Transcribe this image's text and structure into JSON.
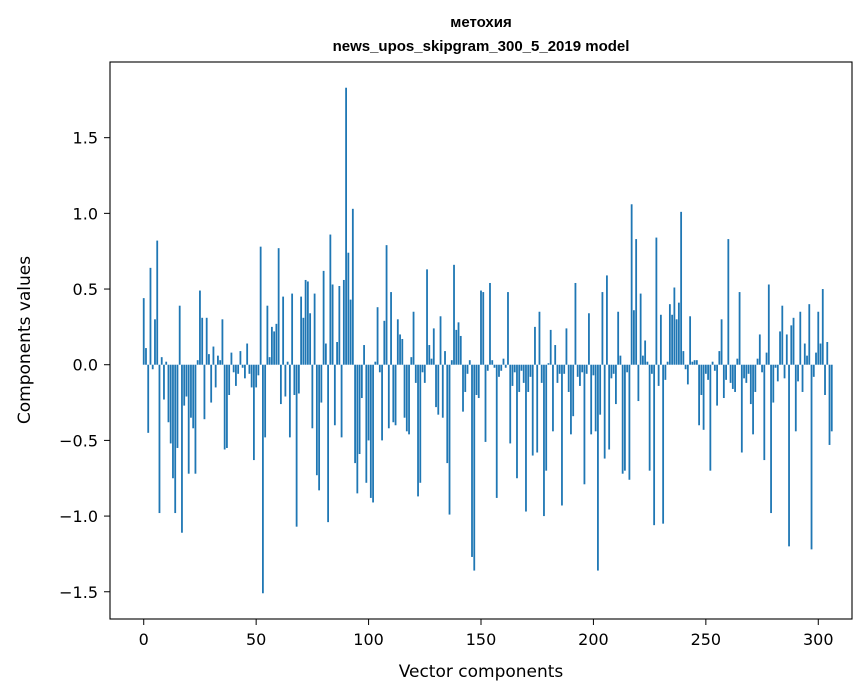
{
  "chart_data": {
    "type": "bar",
    "title_line1": "метохия",
    "title_line2": "news_upos_skipgram_300_5_2019 model",
    "xlabel": "Vector components",
    "ylabel": "Components values",
    "xlim": [
      -15,
      315
    ],
    "ylim": [
      -1.68,
      2.0
    ],
    "x_ticks": [
      0,
      50,
      100,
      150,
      200,
      250,
      300
    ],
    "x_tick_labels": [
      "0",
      "50",
      "100",
      "150",
      "200",
      "250",
      "300"
    ],
    "y_ticks": [
      -1.5,
      -1.0,
      -0.5,
      0.0,
      0.5,
      1.0,
      1.5
    ],
    "y_tick_labels": [
      "−1.5",
      "−1.0",
      "−0.5",
      "0.0",
      "0.5",
      "1.0",
      "1.5"
    ],
    "bar_color": "#1f77b4",
    "grid": false,
    "values": [
      0.44,
      0.11,
      -0.45,
      0.64,
      -0.03,
      0.3,
      0.82,
      -0.98,
      0.05,
      -0.23,
      0.02,
      -0.38,
      -0.52,
      -0.75,
      -0.98,
      -0.55,
      0.39,
      -1.11,
      -0.27,
      -0.21,
      -0.72,
      -0.35,
      -0.42,
      -0.72,
      0.03,
      0.49,
      0.31,
      -0.36,
      0.31,
      0.07,
      -0.25,
      0.12,
      -0.15,
      0.06,
      0.03,
      0.3,
      -0.56,
      -0.55,
      -0.2,
      0.08,
      -0.05,
      -0.14,
      -0.06,
      0.09,
      -0.02,
      -0.09,
      0.14,
      -0.06,
      -0.15,
      -0.63,
      -0.15,
      -0.07,
      0.78,
      -1.51,
      -0.48,
      0.39,
      0.05,
      0.25,
      0.22,
      0.27,
      0.77,
      -0.26,
      0.45,
      -0.21,
      0.02,
      -0.48,
      0.47,
      -0.2,
      -1.07,
      -0.19,
      0.45,
      0.31,
      0.56,
      0.55,
      0.34,
      -0.42,
      0.47,
      -0.73,
      -0.83,
      -0.25,
      0.62,
      0.14,
      -1.04,
      0.86,
      0.53,
      -0.4,
      0.15,
      0.52,
      -0.48,
      0.56,
      1.83,
      0.74,
      0.43,
      1.03,
      -0.65,
      -0.85,
      -0.59,
      -0.22,
      0.13,
      -0.78,
      -0.5,
      -0.88,
      -0.91,
      0.02,
      0.38,
      -0.05,
      -0.5,
      0.29,
      0.79,
      -0.42,
      0.48,
      -0.38,
      -0.4,
      0.3,
      0.2,
      0.17,
      -0.35,
      -0.44,
      -0.46,
      0.05,
      0.35,
      -0.12,
      -0.87,
      -0.78,
      -0.05,
      -0.12,
      0.63,
      0.13,
      0.04,
      0.24,
      -0.28,
      -0.33,
      0.32,
      -0.35,
      0.09,
      -0.65,
      -0.99,
      0.03,
      0.66,
      0.23,
      0.28,
      0.19,
      -0.31,
      -0.18,
      -0.06,
      0.03,
      -1.27,
      -1.36,
      -0.2,
      -0.22,
      0.49,
      0.48,
      -0.51,
      -0.04,
      0.54,
      0.03,
      -0.02,
      -0.88,
      -0.08,
      -0.04,
      0.04,
      -0.02,
      0.48,
      -0.52,
      -0.14,
      -0.05,
      -0.75,
      -0.18,
      -0.04,
      -0.12,
      -0.97,
      -0.18,
      -0.08,
      -0.6,
      0.25,
      -0.58,
      0.35,
      -0.12,
      -1.0,
      -0.7,
      0.01,
      0.23,
      -0.44,
      0.13,
      -0.12,
      -0.06,
      -0.93,
      -0.06,
      0.24,
      -0.18,
      -0.46,
      -0.34,
      0.54,
      -0.08,
      -0.14,
      -0.05,
      -0.79,
      -0.06,
      0.34,
      -0.46,
      -0.07,
      -0.44,
      -1.36,
      -0.33,
      0.48,
      -0.62,
      0.59,
      -0.56,
      -0.09,
      -0.06,
      -0.26,
      0.35,
      0.06,
      -0.72,
      -0.7,
      -0.05,
      -0.76,
      1.06,
      0.36,
      0.83,
      -0.24,
      0.47,
      0.06,
      0.16,
      0.02,
      -0.7,
      -0.06,
      -1.06,
      0.84,
      -0.14,
      0.33,
      -1.05,
      -0.1,
      0.02,
      0.4,
      0.33,
      0.51,
      0.3,
      0.41,
      1.01,
      0.09,
      -0.03,
      -0.13,
      0.32,
      0.02,
      0.03,
      0.03,
      -0.4,
      -0.2,
      -0.43,
      -0.06,
      -0.1,
      -0.7,
      0.02,
      -0.04,
      -0.27,
      0.09,
      0.3,
      -0.22,
      -0.1,
      0.83,
      -0.12,
      -0.16,
      -0.18,
      0.04,
      0.48,
      -0.58,
      -0.09,
      -0.12,
      -0.06,
      -0.26,
      -0.46,
      -0.18,
      0.04,
      0.2,
      -0.05,
      -0.63,
      0.08,
      0.53,
      -0.98,
      -0.25,
      -0.02,
      -0.11,
      0.22,
      0.39,
      -0.09,
      0.2,
      -1.2,
      0.26,
      0.31,
      -0.44,
      -0.11,
      0.35,
      -0.18,
      0.14,
      0.06,
      0.4,
      -1.22,
      -0.08,
      0.08,
      0.35,
      0.14,
      0.5,
      -0.2,
      0.15,
      -0.53,
      -0.44
    ]
  }
}
